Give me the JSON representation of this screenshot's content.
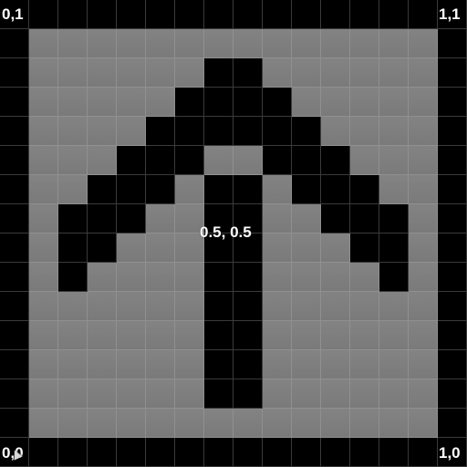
{
  "labels": {
    "top_left": "0,1",
    "top_right": "1,1",
    "bottom_left": "0,0",
    "bottom_right": "1,0",
    "center": "0.5, 0.5"
  },
  "icons": {
    "cursor": "mouse-pointer-icon"
  },
  "grid": {
    "columns": 16,
    "rows": 16,
    "pixels": [
      "################",
      "#..............#",
      "#......##......#",
      "#.....####.....#",
      "#....######....#",
      "#...###..###...#",
      "#..###.##.###..#",
      "#.###..##..###.#",
      "#.##...##...##.#",
      "#.#....##....#.#",
      "#......##......#",
      "#......##......#",
      "#......##......#",
      "#......##......#",
      "#..............#",
      "################"
    ]
  }
}
